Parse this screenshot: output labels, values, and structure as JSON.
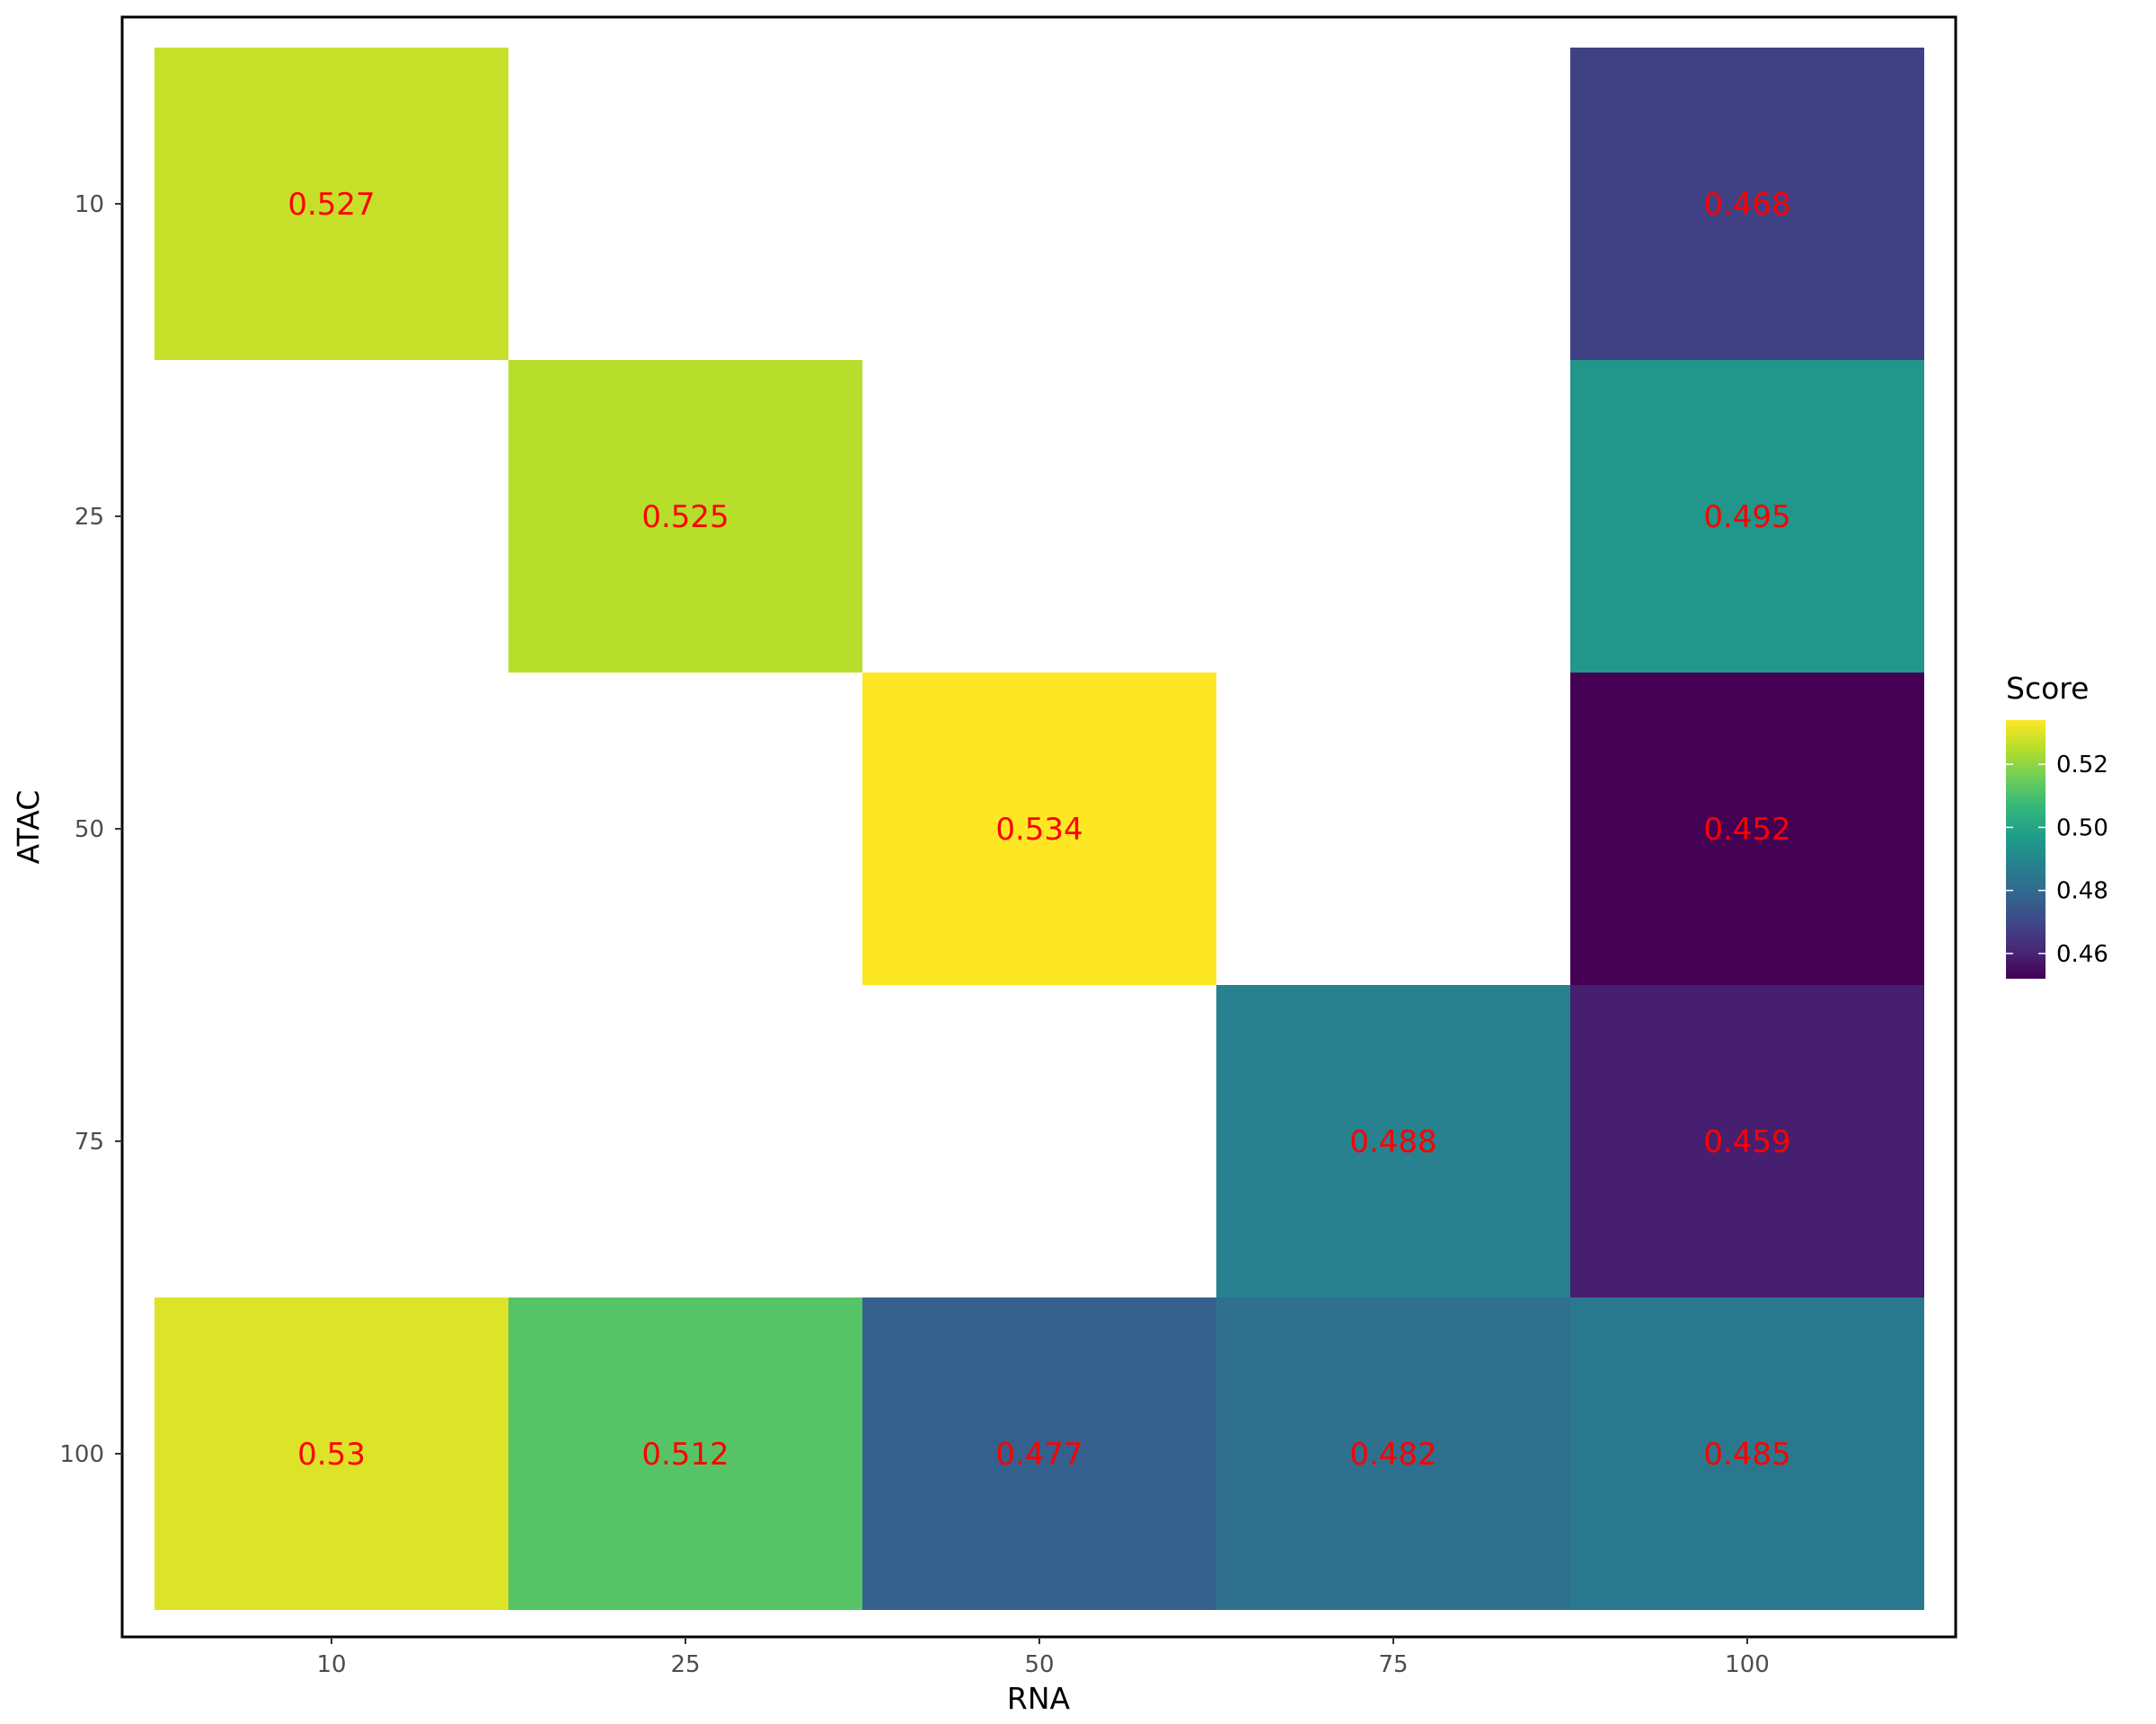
{
  "chart_data": {
    "type": "heatmap",
    "xlabel": "RNA",
    "ylabel": "ATAC",
    "x_categories": [
      "10",
      "25",
      "50",
      "75",
      "100"
    ],
    "y_categories": [
      "10",
      "25",
      "50",
      "75",
      "100"
    ],
    "cells": [
      {
        "x": "10",
        "y": "10",
        "value": 0.527,
        "label": "0.527"
      },
      {
        "x": "100",
        "y": "10",
        "value": 0.468,
        "label": "0.468"
      },
      {
        "x": "25",
        "y": "25",
        "value": 0.525,
        "label": "0.525"
      },
      {
        "x": "100",
        "y": "25",
        "value": 0.495,
        "label": "0.495"
      },
      {
        "x": "50",
        "y": "50",
        "value": 0.534,
        "label": "0.534"
      },
      {
        "x": "100",
        "y": "50",
        "value": 0.452,
        "label": "0.452"
      },
      {
        "x": "75",
        "y": "75",
        "value": 0.488,
        "label": "0.488"
      },
      {
        "x": "100",
        "y": "75",
        "value": 0.459,
        "label": "0.459"
      },
      {
        "x": "10",
        "y": "100",
        "value": 0.53,
        "label": "0.53"
      },
      {
        "x": "25",
        "y": "100",
        "value": 0.512,
        "label": "0.512"
      },
      {
        "x": "50",
        "y": "100",
        "value": 0.477,
        "label": "0.477"
      },
      {
        "x": "75",
        "y": "100",
        "value": 0.482,
        "label": "0.482"
      },
      {
        "x": "100",
        "y": "100",
        "value": 0.485,
        "label": "0.485"
      }
    ],
    "color_scale": {
      "name": "viridis",
      "range": [
        0.452,
        0.534
      ],
      "stops": [
        "#440154",
        "#482878",
        "#3e4989",
        "#31688e",
        "#26828e",
        "#1f9e89",
        "#35b779",
        "#6ece58",
        "#b5de2b",
        "#fde725"
      ]
    },
    "label_color": "#ff0000",
    "legend": {
      "title": "Score",
      "ticks": [
        "0.46",
        "0.48",
        "0.50",
        "0.52"
      ],
      "tick_values": [
        0.46,
        0.48,
        0.5,
        0.52
      ],
      "placement": "right"
    },
    "panel_border": true,
    "grid": false
  }
}
